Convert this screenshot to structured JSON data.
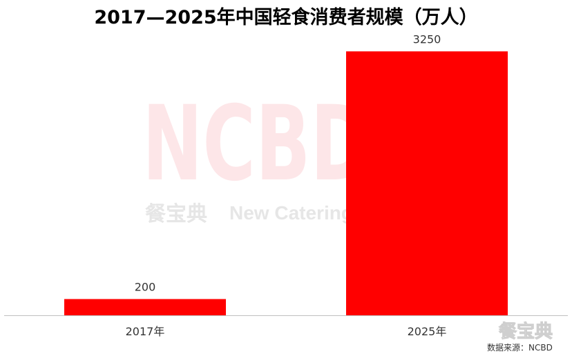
{
  "chart_data": {
    "type": "bar",
    "title": "2017—2025年中国轻食消费者规模（万人）",
    "categories": [
      "2017年",
      "2025年"
    ],
    "values": [
      200,
      3250
    ],
    "data_labels": [
      "200",
      "3250"
    ],
    "ylim": [
      0,
      3500
    ],
    "grid": false,
    "legend": "none",
    "bar_color": "#ff0000",
    "axis_color": "#bfbfbf"
  },
  "watermark": {
    "big_text": "NCBD",
    "sub_text_cn": "餐宝典",
    "sub_text_en": "New Catering"
  },
  "brand": {
    "logo_text": "餐宝典",
    "source_text": "数据来源：NCBD"
  },
  "colors": {
    "watermark_big": "#fde6e8",
    "watermark_sub": "#e6e6e6"
  }
}
